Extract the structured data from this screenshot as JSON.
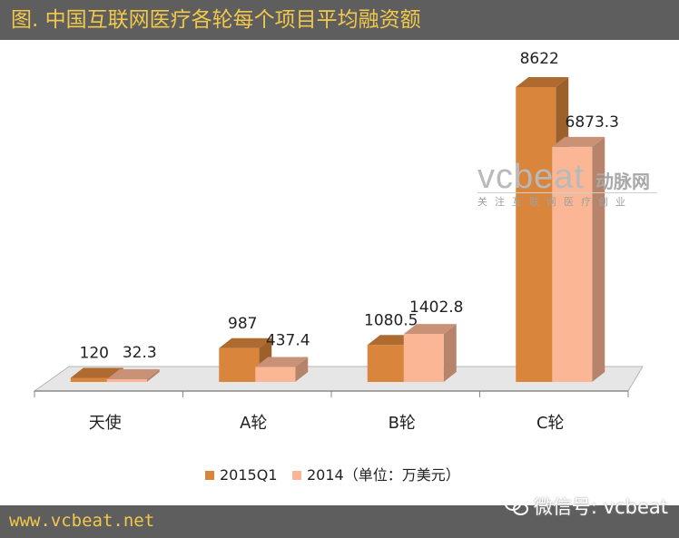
{
  "header": {
    "title": "图. 中国互联网医疗各轮每个项目平均融资额"
  },
  "footer": {
    "url": "www.vcbeat.net",
    "wechat_label": "微信号: vcbeat"
  },
  "watermark": {
    "brand": "vcbeat",
    "brand_cn": "动脉网",
    "slogan": "关注互联网医疗创业"
  },
  "colors": {
    "bar_2015": "#d9853b",
    "bar_2014": "#fbb795",
    "frame": "#5e5e5e",
    "title_text": "#f2c84b"
  },
  "chart_data": {
    "type": "bar",
    "categories": [
      "天使",
      "A轮",
      "B轮",
      "C轮"
    ],
    "series": [
      {
        "name": "2015Q1",
        "values": [
          120,
          987,
          1080.5,
          8622
        ]
      },
      {
        "name": "2014",
        "values": [
          32.3,
          437.4,
          1402.8,
          6873.3
        ]
      }
    ],
    "data_labels": [
      [
        "120",
        "987",
        "1080.5",
        "8622"
      ],
      [
        "32.3",
        "437.4",
        "1402.8",
        "6873.3"
      ]
    ],
    "legend_labels": [
      "2015Q1",
      "2014（单位：万美元）"
    ],
    "legend_position": "bottom",
    "ylim": [
      0,
      8622
    ],
    "title": "图. 中国互联网医疗各轮每个项目平均融资额"
  }
}
